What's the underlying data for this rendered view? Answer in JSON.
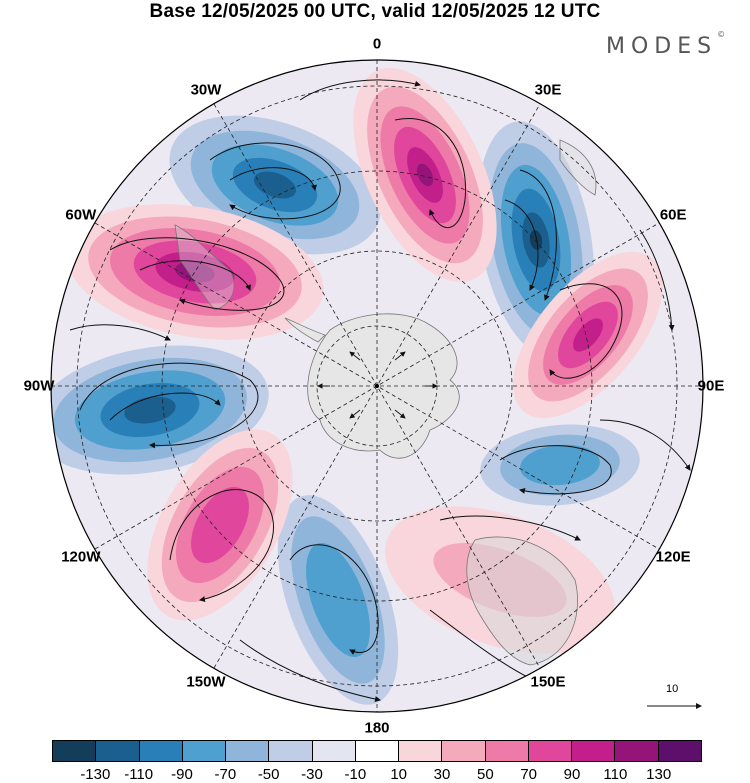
{
  "title": "Base 12/05/2025 00 UTC, valid 12/05/2025 12 UTC",
  "brand": "MODES",
  "brand_mark": "©",
  "longitude_labels": [
    {
      "text": "0",
      "lon": 0
    },
    {
      "text": "30E",
      "lon": 30
    },
    {
      "text": "60E",
      "lon": 60
    },
    {
      "text": "90E",
      "lon": 90
    },
    {
      "text": "120E",
      "lon": 120
    },
    {
      "text": "150E",
      "lon": 150
    },
    {
      "text": "180",
      "lon": 180
    },
    {
      "text": "150W",
      "lon": -150
    },
    {
      "text": "120W",
      "lon": -120
    },
    {
      "text": "90W",
      "lon": -90
    },
    {
      "text": "60W",
      "lon": -60
    },
    {
      "text": "30W",
      "lon": -30
    }
  ],
  "reference_vector": {
    "label": "10"
  },
  "colorbar": {
    "colors": [
      "#123e5c",
      "#1b5f8e",
      "#2980b9",
      "#4f9fcf",
      "#8fb6da",
      "#c0cde6",
      "#e5e5f1",
      "#ffffff",
      "#f9d6dc",
      "#f4a9bd",
      "#ee7aa8",
      "#e0479c",
      "#c21f8a",
      "#94147a",
      "#5e0f6b"
    ],
    "ticks": [
      "-130",
      "-110",
      "-90",
      "-70",
      "-50",
      "-30",
      "-10",
      "10",
      "30",
      "50",
      "70",
      "90",
      "110",
      "130"
    ]
  },
  "chart_data": {
    "type": "polar-stereographic map",
    "projection": "south polar stereographic",
    "center": "South Pole",
    "features": [
      "shaded anomaly field",
      "streamlines",
      "coastlines",
      "lat/lon grid (dashed)"
    ]
  }
}
